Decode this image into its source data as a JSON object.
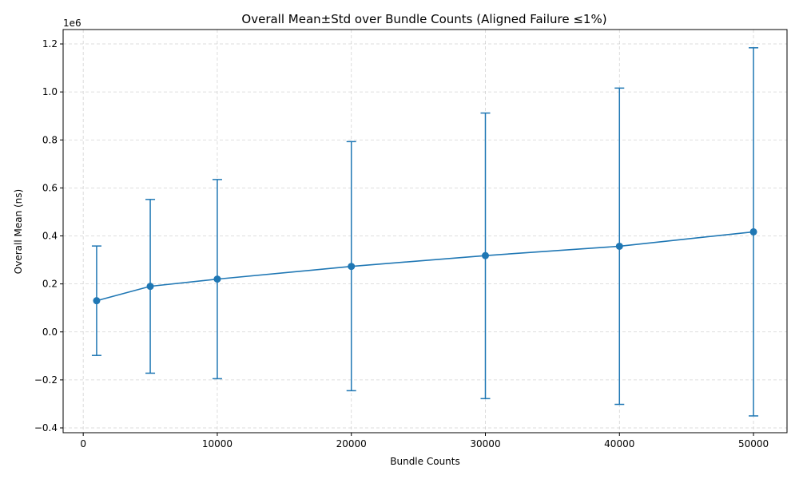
{
  "chart_data": {
    "type": "line",
    "title": "Overall Mean±Std over Bundle Counts (Aligned Failure ≤1%)",
    "xlabel": "Bundle Counts",
    "ylabel": "Overall Mean (ns)",
    "y_offset_label": "1e6",
    "xlim": [
      -1500,
      52500
    ],
    "ylim": [
      -420000,
      1260000
    ],
    "x_ticks": [
      0,
      10000,
      20000,
      30000,
      40000,
      50000
    ],
    "y_ticks": [
      -400000,
      -200000,
      0,
      200000,
      400000,
      600000,
      800000,
      1000000,
      1200000
    ],
    "x_tick_labels": [
      "0",
      "10000",
      "20000",
      "30000",
      "40000",
      "50000"
    ],
    "y_tick_labels": [
      "−0.4",
      "−0.2",
      "0.0",
      "0.2",
      "0.4",
      "0.6",
      "0.8",
      "1.0",
      "1.2"
    ],
    "grid": true,
    "color": "#1f77b4",
    "series": [
      {
        "x": [
          1000,
          5000,
          10000,
          20000,
          30000,
          40000,
          50000
        ],
        "mean": [
          130000,
          190000,
          220000,
          273000,
          318000,
          357000,
          417000
        ],
        "lower": [
          -98000,
          -172000,
          -195000,
          -245000,
          -278000,
          -302000,
          -350000
        ],
        "upper": [
          358000,
          552000,
          635000,
          793000,
          912000,
          1016000,
          1184000
        ]
      }
    ]
  }
}
